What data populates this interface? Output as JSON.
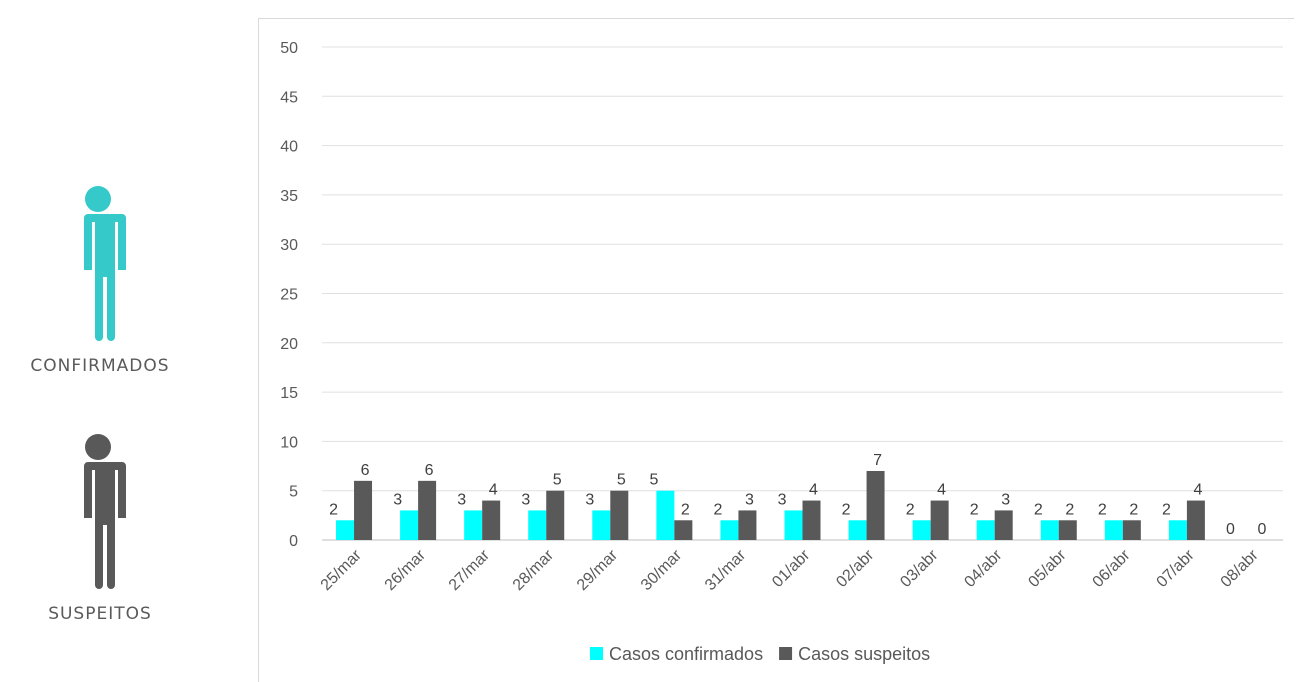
{
  "side_legend": {
    "confirmed_label": "CONFIRMADOS",
    "suspected_label": "SUSPEITOS",
    "confirmed_icon": "person-icon",
    "suspected_icon": "person-icon",
    "confirmed_color": "#36c9c9",
    "suspected_color": "#595959"
  },
  "chart_data": {
    "type": "bar",
    "categories": [
      "25/mar",
      "26/mar",
      "27/mar",
      "28/mar",
      "29/mar",
      "30/mar",
      "31/mar",
      "01/abr",
      "02/abr",
      "03/abr",
      "04/abr",
      "05/abr",
      "06/abr",
      "07/abr",
      "08/abr"
    ],
    "series": [
      {
        "name": "Casos confirmados",
        "color": "#00ffff",
        "values": [
          2,
          3,
          3,
          3,
          3,
          5,
          2,
          3,
          2,
          2,
          2,
          2,
          2,
          2,
          0
        ]
      },
      {
        "name": "Casos suspeitos",
        "color": "#595959",
        "values": [
          6,
          6,
          4,
          5,
          5,
          2,
          3,
          4,
          7,
          4,
          3,
          2,
          2,
          4,
          0
        ]
      }
    ],
    "yticks": [
      "0",
      "5",
      "10",
      "15",
      "20",
      "25",
      "30",
      "35",
      "40",
      "45",
      "50"
    ],
    "ylim": [
      0,
      50
    ],
    "grid": true,
    "legend_position": "bottom"
  }
}
